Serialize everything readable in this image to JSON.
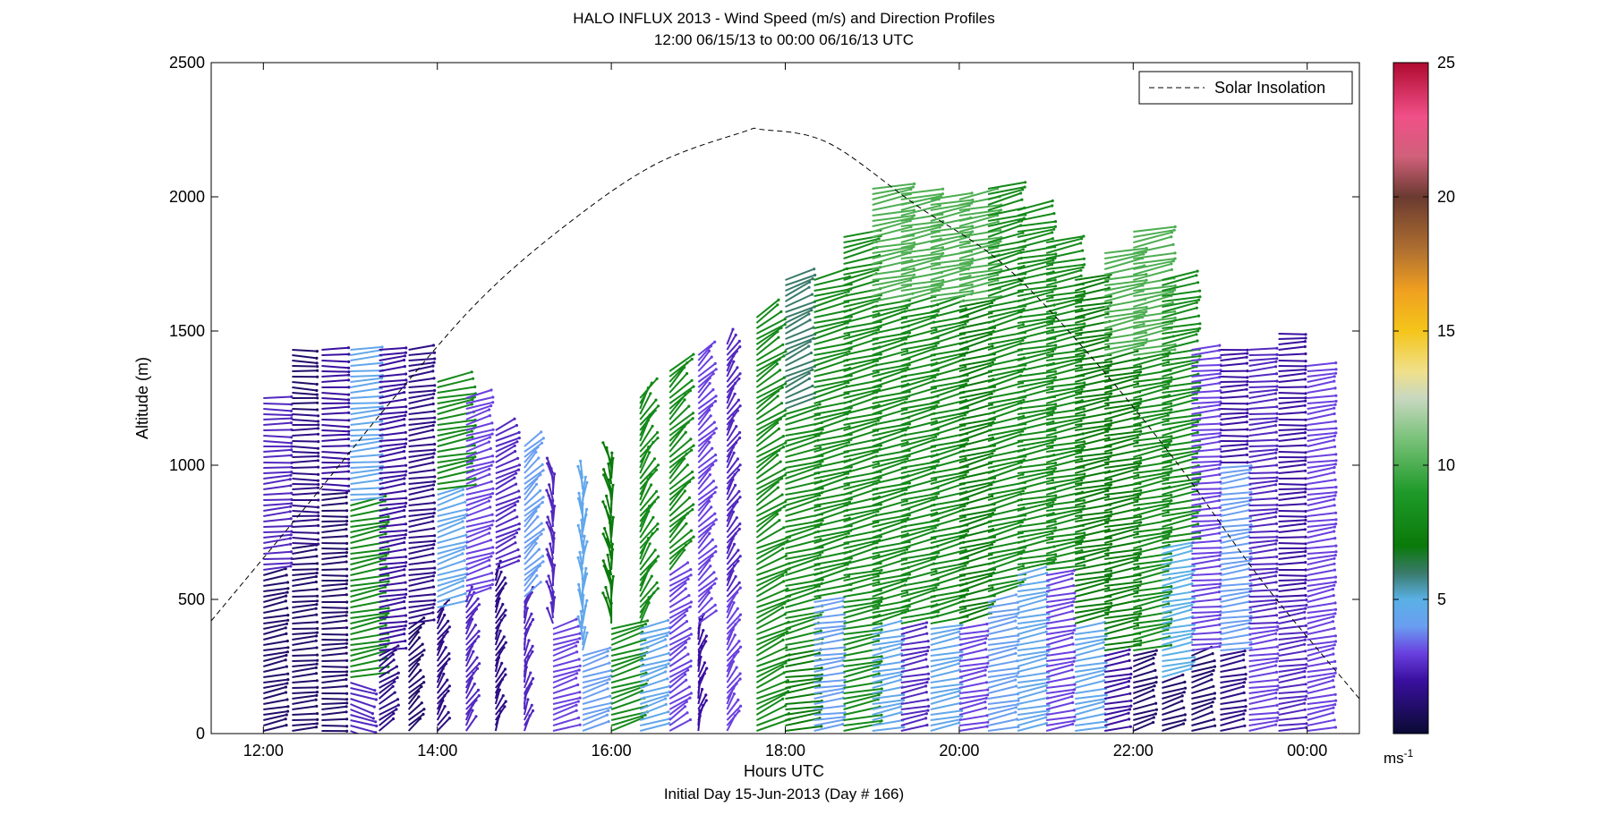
{
  "chart_data": {
    "type": "scatter",
    "title": "HALO INFLUX 2013 - Wind Speed (m/s) and Direction Profiles",
    "subtitle": "12:00 06/15/13 to 00:00 06/16/13  UTC",
    "xlabel": "Hours UTC",
    "xlabel2": "Initial Day 15-Jun-2013 (Day # 166)",
    "ylabel": "Altitude (m)",
    "xlim": [
      11.4,
      24.6
    ],
    "ylim": [
      0,
      2500
    ],
    "x_ticks": [
      12,
      14,
      16,
      18,
      20,
      22,
      24
    ],
    "x_tick_labels": [
      "12:00",
      "14:00",
      "16:00",
      "18:00",
      "20:00",
      "22:00",
      "00:00"
    ],
    "y_ticks": [
      0,
      500,
      1000,
      1500,
      2000,
      2500
    ],
    "y_tick_labels": [
      "0",
      "500",
      "1000",
      "1500",
      "2000",
      "2500"
    ],
    "legend": {
      "label": "Solar Insolation",
      "placement": "top-right",
      "style": "dashed black line"
    },
    "colorbar": {
      "label": "ms",
      "label_exponent": "-1",
      "min": 0,
      "max": 25,
      "ticks": [
        5,
        10,
        15,
        20,
        25
      ],
      "tick_labels": [
        "5",
        "10",
        "15",
        "20",
        "25"
      ],
      "colormap": [
        {
          "v": 0,
          "c": "#0a0a33"
        },
        {
          "v": 2,
          "c": "#3a10a0"
        },
        {
          "v": 3,
          "c": "#6a40e0"
        },
        {
          "v": 4,
          "c": "#6a9ef0"
        },
        {
          "v": 5,
          "c": "#5ab0e6"
        },
        {
          "v": 6,
          "c": "#3a7a6a"
        },
        {
          "v": 7,
          "c": "#0a7a0a"
        },
        {
          "v": 9,
          "c": "#1f9a2a"
        },
        {
          "v": 11,
          "c": "#7ac27a"
        },
        {
          "v": 12.5,
          "c": "#c8d8c0"
        },
        {
          "v": 13.5,
          "c": "#f0e08a"
        },
        {
          "v": 15,
          "c": "#f4c51a"
        },
        {
          "v": 16.5,
          "c": "#f0a020"
        },
        {
          "v": 18,
          "c": "#b07030"
        },
        {
          "v": 20,
          "c": "#6a3a30"
        },
        {
          "v": 21.5,
          "c": "#d0607a"
        },
        {
          "v": 23,
          "c": "#f05088"
        },
        {
          "v": 25,
          "c": "#b00a30"
        }
      ]
    },
    "solar_insolation_curve": {
      "x": [
        11.4,
        12.5,
        13.5,
        14.5,
        15.5,
        16.5,
        17.5,
        17.75,
        18.5,
        19.5,
        20.5,
        21.5,
        22.5,
        23.5,
        24.6
      ],
      "y": [
        420,
        850,
        1250,
        1620,
        1900,
        2120,
        2240,
        2250,
        2200,
        1970,
        1750,
        1410,
        1010,
        560,
        130
      ]
    },
    "wind_profiles": [
      {
        "t": 12.0,
        "top": 1250,
        "bottom": 0,
        "segments": [
          {
            "from": 0,
            "to": 600,
            "speed": 1,
            "dir_deg": 250
          },
          {
            "from": 600,
            "to": 1000,
            "speed": 2.5,
            "dir_deg": 260
          },
          {
            "from": 1000,
            "to": 1250,
            "speed": 2.5,
            "dir_deg": 270
          }
        ]
      },
      {
        "t": 12.33,
        "top": 1440,
        "bottom": 0,
        "segments": [
          {
            "from": 0,
            "to": 700,
            "speed": 1,
            "dir_deg": 260
          },
          {
            "from": 700,
            "to": 1200,
            "speed": 1.5,
            "dir_deg": 270
          },
          {
            "from": 1200,
            "to": 1440,
            "speed": 1,
            "dir_deg": 275
          }
        ]
      },
      {
        "t": 12.67,
        "top": 1440,
        "bottom": 0,
        "segments": [
          {
            "from": 0,
            "to": 900,
            "speed": 1,
            "dir_deg": 265
          },
          {
            "from": 900,
            "to": 1440,
            "speed": 2,
            "dir_deg": 270
          }
        ]
      },
      {
        "t": 13.0,
        "top": 1440,
        "bottom": 0,
        "segments": [
          {
            "from": 0,
            "to": 200,
            "speed": 2.5,
            "dir_deg": 300
          },
          {
            "from": 200,
            "to": 850,
            "speed": 8,
            "dir_deg": 250
          },
          {
            "from": 850,
            "to": 1440,
            "speed": 4.5,
            "dir_deg": 260
          }
        ]
      },
      {
        "t": 13.33,
        "top": 1440,
        "bottom": 0,
        "segments": [
          {
            "from": 0,
            "to": 300,
            "speed": 1.5,
            "dir_deg": 220
          },
          {
            "from": 300,
            "to": 1440,
            "speed": 2,
            "dir_deg": 255
          }
        ]
      },
      {
        "t": 13.67,
        "top": 1440,
        "bottom": 0,
        "segments": [
          {
            "from": 0,
            "to": 400,
            "speed": 1,
            "dir_deg": 210
          },
          {
            "from": 400,
            "to": 1440,
            "speed": 1.5,
            "dir_deg": 255
          }
        ]
      },
      {
        "t": 14.0,
        "top": 1320,
        "bottom": 0,
        "segments": [
          {
            "from": 0,
            "to": 450,
            "speed": 1.5,
            "dir_deg": 200
          },
          {
            "from": 450,
            "to": 900,
            "speed": 4.5,
            "dir_deg": 240
          },
          {
            "from": 900,
            "to": 1320,
            "speed": 8,
            "dir_deg": 250
          }
        ]
      },
      {
        "t": 14.33,
        "top": 1250,
        "bottom": 0,
        "segments": [
          {
            "from": 0,
            "to": 500,
            "speed": 2.5,
            "dir_deg": 200
          },
          {
            "from": 500,
            "to": 1250,
            "speed": 3,
            "dir_deg": 240
          }
        ]
      },
      {
        "t": 14.67,
        "top": 1130,
        "bottom": 0,
        "segments": [
          {
            "from": 0,
            "to": 600,
            "speed": 1.5,
            "dir_deg": 195
          },
          {
            "from": 600,
            "to": 1130,
            "speed": 2.5,
            "dir_deg": 230
          }
        ]
      },
      {
        "t": 15.0,
        "top": 1070,
        "bottom": 0,
        "segments": [
          {
            "from": 0,
            "to": 500,
            "speed": 2.5,
            "dir_deg": 190
          },
          {
            "from": 500,
            "to": 1070,
            "speed": 4,
            "dir_deg": 210
          }
        ]
      },
      {
        "t": 15.33,
        "top": 980,
        "bottom": 0,
        "segments": [
          {
            "from": 0,
            "to": 400,
            "speed": 3,
            "dir_deg": 240
          },
          {
            "from": 400,
            "to": 980,
            "speed": 2.5,
            "dir_deg": 175
          }
        ]
      },
      {
        "t": 15.67,
        "top": 960,
        "bottom": 0,
        "segments": [
          {
            "from": 0,
            "to": 300,
            "speed": 4,
            "dir_deg": 240
          },
          {
            "from": 300,
            "to": 960,
            "speed": 4.5,
            "dir_deg": 180
          }
        ]
      },
      {
        "t": 16.0,
        "top": 1010,
        "bottom": 0,
        "segments": [
          {
            "from": 0,
            "to": 400,
            "speed": 8,
            "dir_deg": 240
          },
          {
            "from": 400,
            "to": 1010,
            "speed": 7,
            "dir_deg": 175
          }
        ]
      },
      {
        "t": 16.33,
        "top": 1260,
        "bottom": 0,
        "segments": [
          {
            "from": 0,
            "to": 400,
            "speed": 4.5,
            "dir_deg": 240
          },
          {
            "from": 400,
            "to": 1260,
            "speed": 8,
            "dir_deg": 200
          }
        ]
      },
      {
        "t": 16.67,
        "top": 1360,
        "bottom": 0,
        "segments": [
          {
            "from": 0,
            "to": 600,
            "speed": 3,
            "dir_deg": 220
          },
          {
            "from": 600,
            "to": 1360,
            "speed": 8,
            "dir_deg": 210
          }
        ]
      },
      {
        "t": 17.0,
        "top": 1410,
        "bottom": 0,
        "segments": [
          {
            "from": 0,
            "to": 400,
            "speed": 2,
            "dir_deg": 190
          },
          {
            "from": 400,
            "to": 1410,
            "speed": 3,
            "dir_deg": 210
          }
        ]
      },
      {
        "t": 17.33,
        "top": 1460,
        "bottom": 0,
        "segments": [
          {
            "from": 0,
            "to": 500,
            "speed": 3,
            "dir_deg": 200
          },
          {
            "from": 500,
            "to": 1460,
            "speed": 2.5,
            "dir_deg": 200
          }
        ]
      },
      {
        "t": 17.67,
        "top": 1550,
        "bottom": 0,
        "segments": [
          {
            "from": 0,
            "to": 700,
            "speed": 8,
            "dir_deg": 230
          },
          {
            "from": 700,
            "to": 1550,
            "speed": 8,
            "dir_deg": 220
          }
        ]
      },
      {
        "t": 18.0,
        "top": 1700,
        "bottom": 0,
        "segments": [
          {
            "from": 0,
            "to": 300,
            "speed": 7,
            "dir_deg": 255
          },
          {
            "from": 300,
            "to": 1200,
            "speed": 8,
            "dir_deg": 245
          },
          {
            "from": 1200,
            "to": 1700,
            "speed": 6,
            "dir_deg": 230
          }
        ]
      },
      {
        "t": 18.33,
        "top": 1700,
        "bottom": 0,
        "segments": [
          {
            "from": 0,
            "to": 500,
            "speed": 4,
            "dir_deg": 255
          },
          {
            "from": 500,
            "to": 1700,
            "speed": 8,
            "dir_deg": 245
          }
        ]
      },
      {
        "t": 18.67,
        "top": 1860,
        "bottom": 0,
        "segments": [
          {
            "from": 0,
            "to": 600,
            "speed": 8,
            "dir_deg": 250
          },
          {
            "from": 600,
            "to": 1860,
            "speed": 8,
            "dir_deg": 245
          }
        ]
      },
      {
        "t": 19.0,
        "top": 2040,
        "bottom": 0,
        "segments": [
          {
            "from": 0,
            "to": 400,
            "speed": 4.5,
            "dir_deg": 250
          },
          {
            "from": 400,
            "to": 1600,
            "speed": 8,
            "dir_deg": 245
          },
          {
            "from": 1600,
            "to": 2040,
            "speed": 10,
            "dir_deg": 250
          }
        ]
      },
      {
        "t": 19.33,
        "top": 2020,
        "bottom": 0,
        "segments": [
          {
            "from": 0,
            "to": 400,
            "speed": 2.5,
            "dir_deg": 250
          },
          {
            "from": 400,
            "to": 1600,
            "speed": 8,
            "dir_deg": 245
          },
          {
            "from": 1600,
            "to": 2020,
            "speed": 10,
            "dir_deg": 250
          }
        ]
      },
      {
        "t": 19.67,
        "top": 2000,
        "bottom": 0,
        "segments": [
          {
            "from": 0,
            "to": 400,
            "speed": 4.5,
            "dir_deg": 250
          },
          {
            "from": 400,
            "to": 1600,
            "speed": 8,
            "dir_deg": 245
          },
          {
            "from": 1600,
            "to": 2000,
            "speed": 10,
            "dir_deg": 250
          }
        ]
      },
      {
        "t": 20.0,
        "top": 2000,
        "bottom": 0,
        "segments": [
          {
            "from": 0,
            "to": 400,
            "speed": 3,
            "dir_deg": 250
          },
          {
            "from": 400,
            "to": 1600,
            "speed": 7,
            "dir_deg": 245
          },
          {
            "from": 1600,
            "to": 2000,
            "speed": 10,
            "dir_deg": 250
          }
        ]
      },
      {
        "t": 20.33,
        "top": 2040,
        "bottom": 0,
        "segments": [
          {
            "from": 0,
            "to": 500,
            "speed": 4,
            "dir_deg": 250
          },
          {
            "from": 500,
            "to": 2040,
            "speed": 8,
            "dir_deg": 245
          }
        ]
      },
      {
        "t": 20.67,
        "top": 1960,
        "bottom": 0,
        "segments": [
          {
            "from": 0,
            "to": 600,
            "speed": 4.5,
            "dir_deg": 250
          },
          {
            "from": 600,
            "to": 1960,
            "speed": 8,
            "dir_deg": 250
          }
        ]
      },
      {
        "t": 21.0,
        "top": 1840,
        "bottom": 0,
        "segments": [
          {
            "from": 0,
            "to": 600,
            "speed": 3,
            "dir_deg": 250
          },
          {
            "from": 600,
            "to": 1840,
            "speed": 8,
            "dir_deg": 250
          }
        ]
      },
      {
        "t": 21.33,
        "top": 1700,
        "bottom": 0,
        "segments": [
          {
            "from": 0,
            "to": 400,
            "speed": 4.5,
            "dir_deg": 250
          },
          {
            "from": 400,
            "to": 1700,
            "speed": 7,
            "dir_deg": 250
          }
        ]
      },
      {
        "t": 21.67,
        "top": 1800,
        "bottom": 0,
        "segments": [
          {
            "from": 0,
            "to": 300,
            "speed": 2,
            "dir_deg": 250
          },
          {
            "from": 300,
            "to": 1400,
            "speed": 7,
            "dir_deg": 250
          },
          {
            "from": 1400,
            "to": 1800,
            "speed": 10,
            "dir_deg": 250
          }
        ]
      },
      {
        "t": 22.0,
        "top": 1870,
        "bottom": 0,
        "segments": [
          {
            "from": 0,
            "to": 300,
            "speed": 1,
            "dir_deg": 240
          },
          {
            "from": 300,
            "to": 1400,
            "speed": 8,
            "dir_deg": 250
          },
          {
            "from": 1400,
            "to": 1870,
            "speed": 10,
            "dir_deg": 250
          }
        ]
      },
      {
        "t": 22.33,
        "top": 1700,
        "bottom": 0,
        "segments": [
          {
            "from": 0,
            "to": 200,
            "speed": 1,
            "dir_deg": 240
          },
          {
            "from": 200,
            "to": 700,
            "speed": 5,
            "dir_deg": 250
          },
          {
            "from": 700,
            "to": 1700,
            "speed": 8,
            "dir_deg": 250
          }
        ]
      },
      {
        "t": 22.67,
        "top": 1440,
        "bottom": 0,
        "segments": [
          {
            "from": 0,
            "to": 300,
            "speed": 1,
            "dir_deg": 240
          },
          {
            "from": 300,
            "to": 1440,
            "speed": 3,
            "dir_deg": 260
          }
        ]
      },
      {
        "t": 23.0,
        "top": 1440,
        "bottom": 0,
        "segments": [
          {
            "from": 0,
            "to": 300,
            "speed": 1.5,
            "dir_deg": 250
          },
          {
            "from": 300,
            "to": 1000,
            "speed": 4,
            "dir_deg": 255
          },
          {
            "from": 1000,
            "to": 1440,
            "speed": 2,
            "dir_deg": 265
          }
        ]
      },
      {
        "t": 23.33,
        "top": 1440,
        "bottom": 0,
        "segments": [
          {
            "from": 0,
            "to": 400,
            "speed": 3,
            "dir_deg": 255
          },
          {
            "from": 400,
            "to": 1440,
            "speed": 2.5,
            "dir_deg": 260
          }
        ]
      },
      {
        "t": 23.67,
        "top": 1500,
        "bottom": 0,
        "segments": [
          {
            "from": 0,
            "to": 500,
            "speed": 2.5,
            "dir_deg": 255
          },
          {
            "from": 500,
            "to": 1500,
            "speed": 2,
            "dir_deg": 265
          }
        ]
      },
      {
        "t": 24.0,
        "top": 1370,
        "bottom": 0,
        "segments": [
          {
            "from": 0,
            "to": 600,
            "speed": 3,
            "dir_deg": 250
          },
          {
            "from": 600,
            "to": 1370,
            "speed": 3,
            "dir_deg": 255
          }
        ]
      }
    ]
  }
}
